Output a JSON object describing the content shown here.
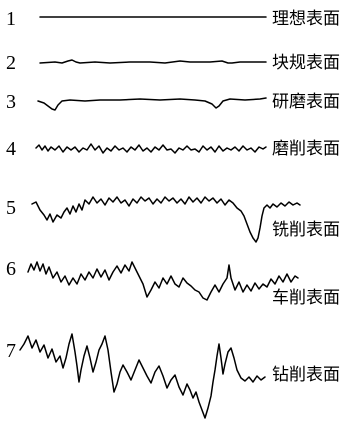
{
  "profiles": [
    {
      "number": "1",
      "label": "理想表面",
      "surface": "ideal"
    },
    {
      "number": "2",
      "label": "块规表面",
      "surface": "gauge-block"
    },
    {
      "number": "3",
      "label": "研磨表面",
      "surface": "lapped"
    },
    {
      "number": "4",
      "label": "磨削表面",
      "surface": "ground"
    },
    {
      "number": "5",
      "label": "铣削表面",
      "surface": "milled"
    },
    {
      "number": "6",
      "label": "车削表面",
      "surface": "turned"
    },
    {
      "number": "7",
      "label": "钻削表面",
      "surface": "drilled"
    }
  ]
}
